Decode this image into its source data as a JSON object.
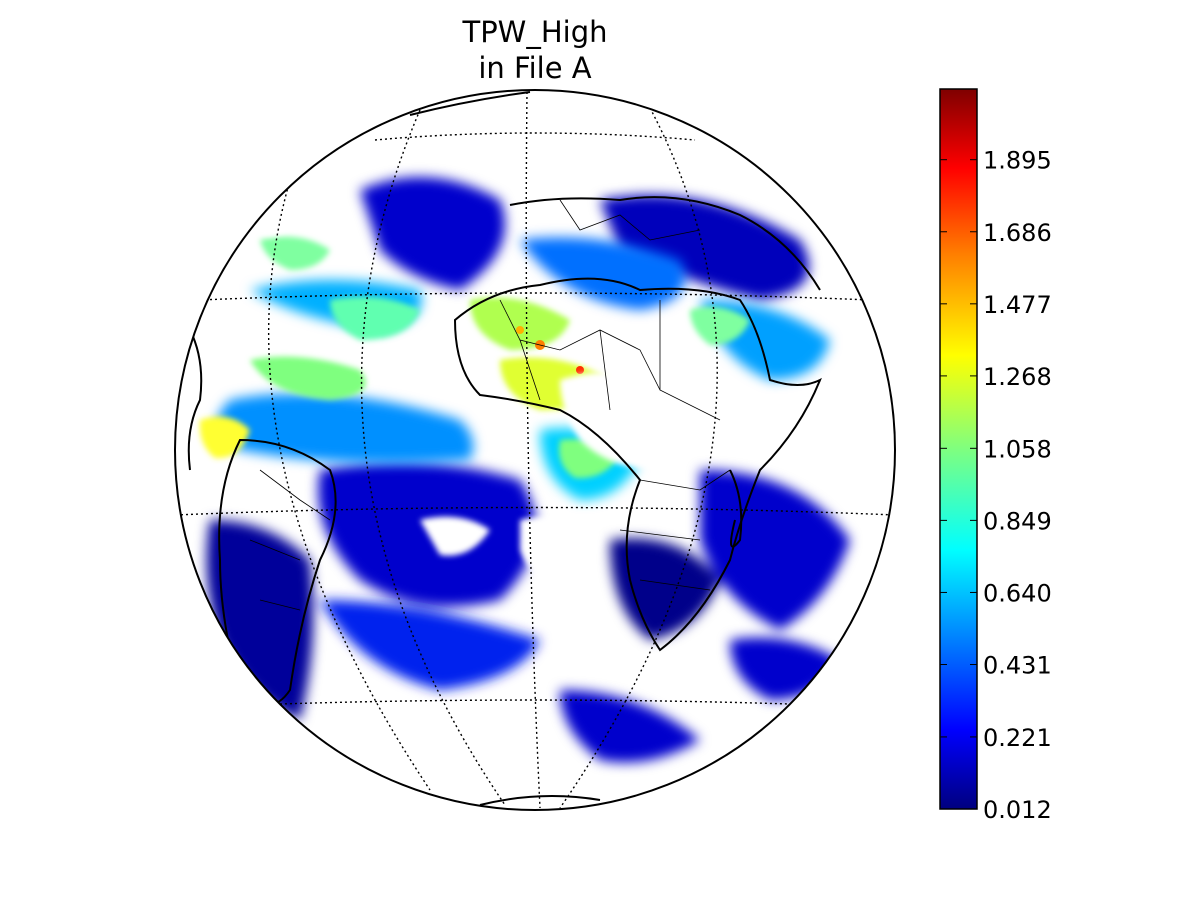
{
  "title": {
    "line1": "TPW_High",
    "line2": "in File A"
  },
  "map": {
    "projection": "orthographic",
    "graticule": "dotted",
    "features": [
      "coastlines",
      "country borders",
      "lat/lon grid"
    ]
  },
  "colorbar": {
    "colormap": "jet",
    "min": 0.012,
    "max": 2.1,
    "tick_labels": [
      "0.012",
      "0.221",
      "0.431",
      "0.640",
      "0.849",
      "1.058",
      "1.268",
      "1.477",
      "1.686",
      "1.895"
    ],
    "tick_values": [
      0.012,
      0.221,
      0.431,
      0.64,
      0.849,
      1.058,
      1.268,
      1.477,
      1.686,
      1.895
    ]
  },
  "colors": {
    "jet": [
      "#00007f",
      "#0000ff",
      "#007fff",
      "#00ffff",
      "#7fff7f",
      "#ffff00",
      "#ff7f00",
      "#ff0000",
      "#7f0000"
    ]
  }
}
